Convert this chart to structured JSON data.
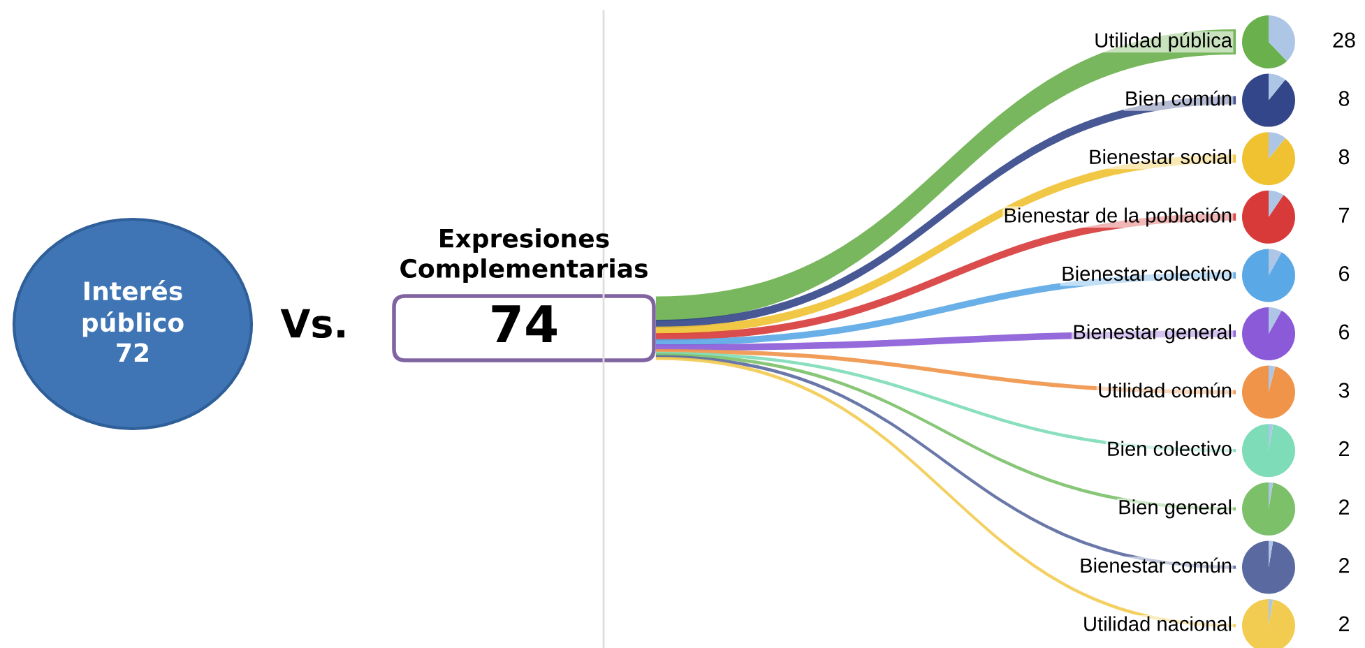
{
  "chart_data": {
    "type": "other",
    "title": "Expresiones\nComplementarias",
    "categories": [
      "Utilidad pública",
      "Bien común",
      "Bienestar social",
      "Bienestar de la población",
      "Bienestar colectivo",
      "Bienestar general",
      "Utilidad común",
      "Bien colectivo",
      "Bien general",
      "Bienestar común",
      "Utilidad nacional"
    ],
    "values": [
      28,
      8,
      8,
      7,
      6,
      6,
      3,
      2,
      2,
      2,
      2
    ],
    "colors": [
      "#6ab04c",
      "#34468a",
      "#f0c232",
      "#d83a3a",
      "#5aa8e6",
      "#8a5ad8",
      "#f0944a",
      "#7edcb8",
      "#7cc06a",
      "#5a6aa0",
      "#f2cc50"
    ],
    "data_labels": true,
    "annotations": [
      "Interés\npúblico\n72",
      "Vs.",
      "74"
    ]
  }
}
